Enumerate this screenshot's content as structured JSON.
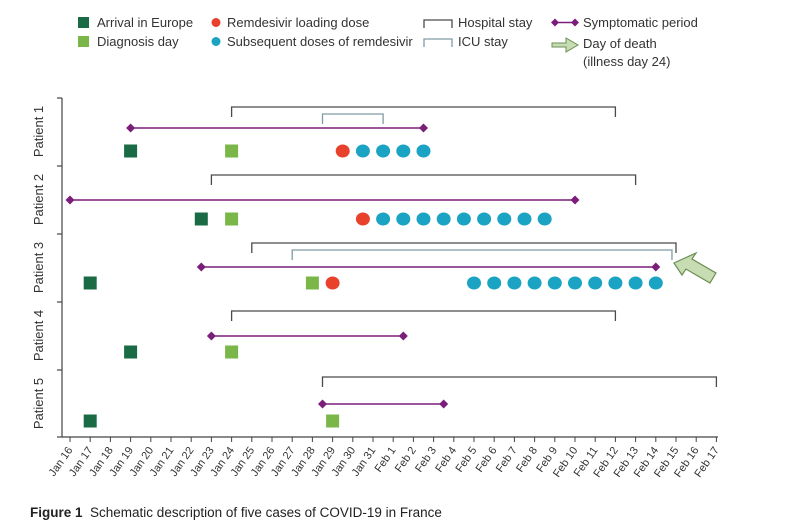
{
  "chart_data": {
    "type": "timeline",
    "caption_label": "Figure 1",
    "caption_text": "Schematic description of five cases of COVID-19 in France",
    "date_ticks": [
      "Jan 16",
      "Jan 17",
      "Jan 18",
      "Jan 19",
      "Jan 20",
      "Jan 21",
      "Jan 22",
      "Jan 23",
      "Jan 24",
      "Jan 25",
      "Jan 26",
      "Jan 27",
      "Jan 28",
      "Jan 29",
      "Jan 30",
      "Jan 31",
      "Feb 1",
      "Feb 2",
      "Feb 3",
      "Feb 4",
      "Feb 5",
      "Feb 6",
      "Feb 7",
      "Feb 8",
      "Feb 9",
      "Feb 10",
      "Feb 11",
      "Feb 12",
      "Feb 13",
      "Feb 14",
      "Feb 15",
      "Feb 16",
      "Feb 17"
    ],
    "legend": {
      "arrival": "Arrival in Europe",
      "diagnosis": "Diagnosis day",
      "loading": "Remdesivir loading dose",
      "subsequent": "Subsequent doses of remdesivir",
      "hospital": "Hospital stay",
      "icu": "ICU stay",
      "symptomatic": "Symptomatic period",
      "death_line1": "Day of death",
      "death_line2": "(illness day 24)"
    },
    "colors": {
      "arrival": "#1a6b45",
      "diagnosis": "#7ab648",
      "loading": "#e8412c",
      "subsequent": "#1aa3c2",
      "hospital": "#4a4a4a",
      "icu": "#7f9aa3",
      "symptomatic": "#7a1e7a",
      "death_arrow": "#c8dcb4"
    },
    "patients": [
      {
        "label": "Patient 1",
        "arrival": 3,
        "diagnosis": 8,
        "hospital": [
          8,
          27
        ],
        "icu": [
          12.5,
          15.5
        ],
        "symptomatic": [
          3,
          17.5
        ],
        "loading": 13.5,
        "subsequent": [
          14.5,
          15.5,
          16.5,
          17.5
        ]
      },
      {
        "label": "Patient 2",
        "arrival": 6.5,
        "diagnosis": 8,
        "hospital": [
          7,
          28
        ],
        "icu": null,
        "symptomatic": [
          0,
          25
        ],
        "loading": 14.5,
        "subsequent": [
          15.5,
          16.5,
          17.5,
          18.5,
          19.5,
          20.5,
          21.5,
          22.5,
          23.5
        ]
      },
      {
        "label": "Patient 3",
        "arrival": 1,
        "diagnosis": 12,
        "hospital": [
          9,
          30
        ],
        "icu": [
          11,
          29.8
        ],
        "symptomatic": [
          6.5,
          29
        ],
        "loading": 13,
        "subsequent": [
          20,
          21,
          22,
          23,
          24,
          25,
          26,
          27,
          28,
          29
        ],
        "death": 29.8
      },
      {
        "label": "Patient 4",
        "arrival": 3,
        "diagnosis": 8,
        "hospital": [
          8,
          27
        ],
        "icu": null,
        "symptomatic": [
          7,
          16.5
        ],
        "loading": null,
        "subsequent": []
      },
      {
        "label": "Patient 5",
        "arrival": 1,
        "diagnosis": 13,
        "hospital": [
          12.5,
          32
        ],
        "icu": null,
        "symptomatic": [
          12.5,
          18.5
        ],
        "loading": null,
        "subsequent": []
      }
    ]
  }
}
